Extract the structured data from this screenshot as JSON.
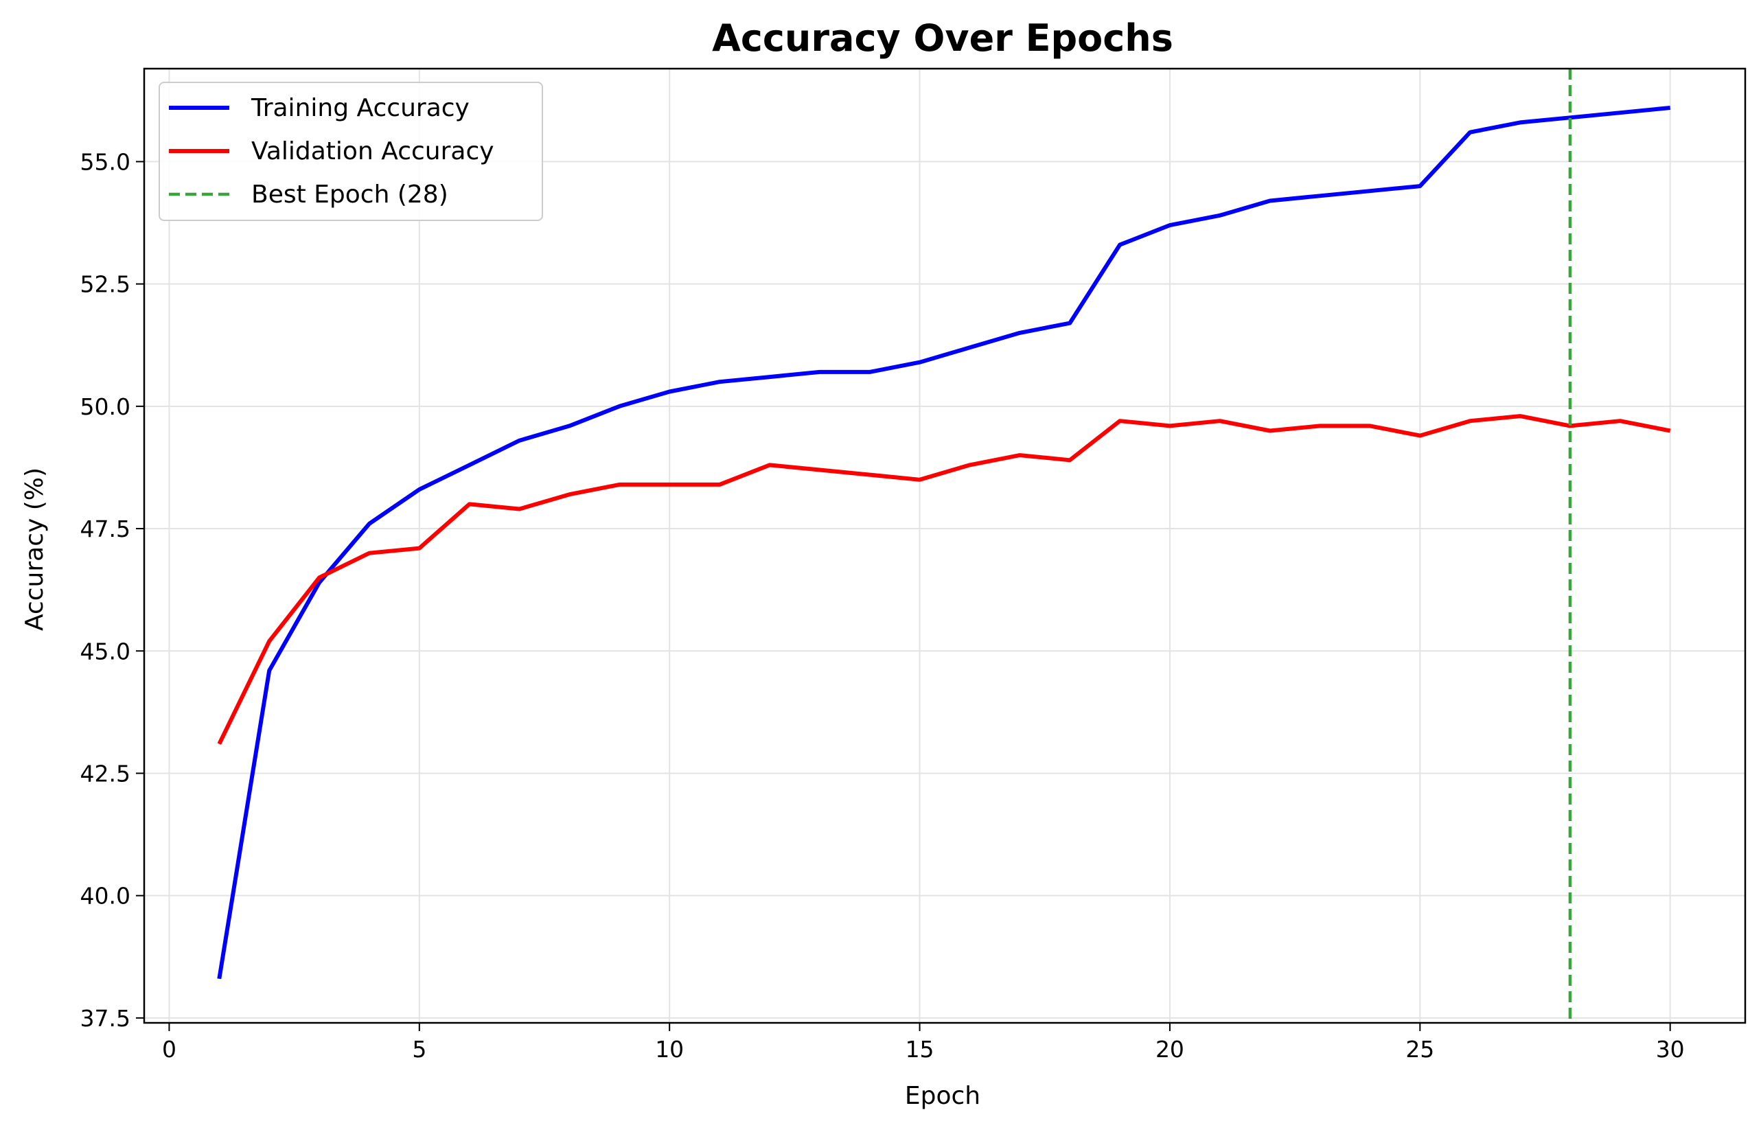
{
  "chart_data": {
    "type": "line",
    "title": "Accuracy Over Epochs",
    "xlabel": "Epoch",
    "ylabel": "Accuracy (%)",
    "xlim": [
      -0.5,
      31.5
    ],
    "ylim": [
      37.4,
      56.9
    ],
    "x_ticks": [
      0,
      5,
      10,
      15,
      20,
      25,
      30
    ],
    "y_ticks": [
      37.5,
      40.0,
      42.5,
      45.0,
      47.5,
      50.0,
      52.5,
      55.0
    ],
    "grid": true,
    "legend_location": "upper left",
    "x": [
      1,
      2,
      3,
      4,
      5,
      6,
      7,
      8,
      9,
      10,
      11,
      12,
      13,
      14,
      15,
      16,
      17,
      18,
      19,
      20,
      21,
      22,
      23,
      24,
      25,
      26,
      27,
      28,
      29,
      30
    ],
    "series": [
      {
        "name": "Training Accuracy",
        "color": "#0000ff",
        "style": "solid",
        "values": [
          38.3,
          44.6,
          46.4,
          47.6,
          48.3,
          48.8,
          49.3,
          49.6,
          50.0,
          50.3,
          50.5,
          50.6,
          50.7,
          50.7,
          50.9,
          51.2,
          51.5,
          51.7,
          53.3,
          53.7,
          53.9,
          54.2,
          54.3,
          54.4,
          54.5,
          55.6,
          55.8,
          55.9,
          56.0,
          56.1
        ]
      },
      {
        "name": "Validation Accuracy",
        "color": "#ff0000",
        "style": "solid",
        "values": [
          43.1,
          45.2,
          46.5,
          47.0,
          47.1,
          48.0,
          47.9,
          48.2,
          48.4,
          48.4,
          48.4,
          48.8,
          48.7,
          48.6,
          48.5,
          48.8,
          49.0,
          48.9,
          49.7,
          49.6,
          49.7,
          49.5,
          49.6,
          49.6,
          49.4,
          49.7,
          49.8,
          49.6,
          49.7,
          49.5
        ]
      }
    ],
    "reference_lines": [
      {
        "name": "Best Epoch (28)",
        "orientation": "vertical",
        "x": 28,
        "color": "#3aa53a",
        "style": "dashed"
      }
    ]
  }
}
